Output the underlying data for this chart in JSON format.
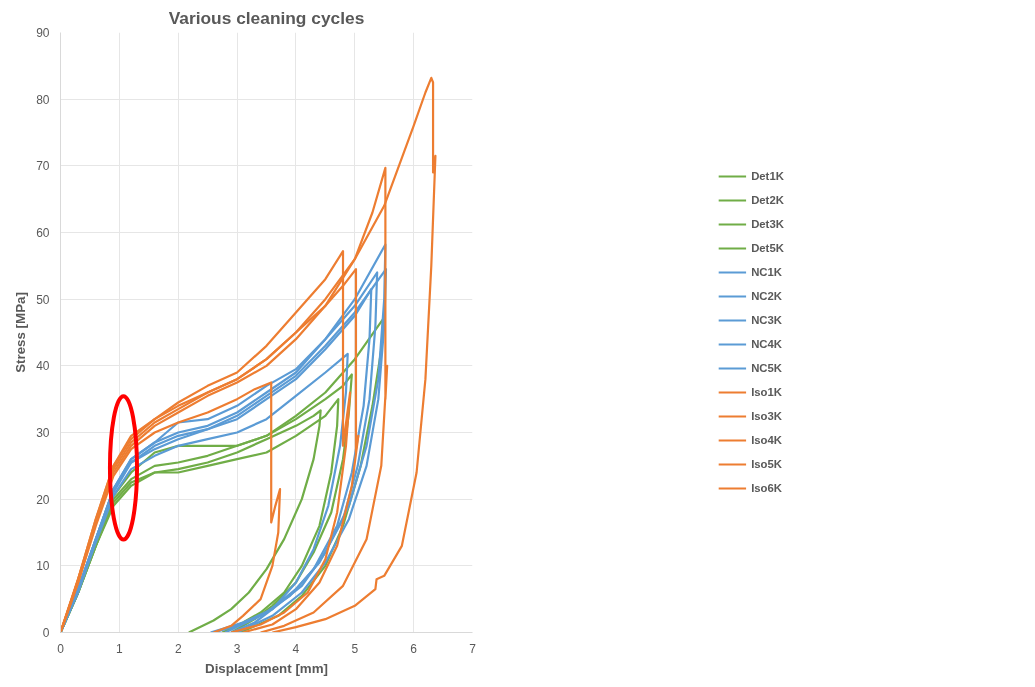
{
  "chart_data": {
    "type": "line",
    "title": "Various cleaning cycles",
    "xlabel": "Displacement [mm]",
    "ylabel": "Stress [MPa]",
    "xlim": [
      0,
      7
    ],
    "xticks": [
      0,
      1,
      2,
      3,
      4,
      5,
      6,
      7
    ],
    "ylim": [
      0,
      90
    ],
    "yticks": [
      0,
      10,
      20,
      30,
      40,
      50,
      60,
      70,
      80,
      90
    ],
    "grid": true,
    "legend": "right",
    "marker": "none",
    "line_style": "solid",
    "series": [
      {
        "name": "Det1K",
        "color": "#70ad47",
        "x": [
          0,
          0.3,
          0.6,
          0.9,
          1.2,
          1.6,
          2.0,
          2.5,
          3.0,
          3.5,
          4.0,
          4.3,
          4.42,
          4.4,
          4.3,
          4.1,
          3.8,
          3.5,
          3.2,
          2.9,
          2.6,
          2.18
        ],
        "values": [
          0,
          6,
          13,
          19,
          22,
          24,
          24.5,
          25.5,
          27,
          29,
          31,
          32.5,
          33.3,
          31,
          26,
          20,
          14,
          9.5,
          6,
          3.5,
          1.8,
          0
        ]
      },
      {
        "name": "Det2K",
        "color": "#70ad47",
        "x": [
          0,
          0.3,
          0.6,
          0.9,
          1.2,
          1.6,
          2.0,
          2.5,
          3.0,
          3.5,
          4.0,
          4.5,
          4.8,
          4.95,
          4.9,
          4.8,
          4.6,
          4.3,
          4.0,
          3.6,
          3.3,
          2.9
        ],
        "values": [
          0,
          6,
          13,
          20,
          23,
          25,
          25.5,
          26.5,
          28,
          29.5,
          32,
          35,
          37,
          38.7,
          33,
          26,
          18,
          12,
          7.5,
          4,
          2,
          0
        ]
      },
      {
        "name": "Det3K",
        "color": "#70ad47",
        "x": [
          0,
          0.3,
          0.6,
          0.9,
          1.2,
          1.6,
          2.0,
          2.5,
          3.0,
          3.5,
          4.0,
          4.5,
          5.0,
          5.48,
          5.46,
          5.3,
          5.1,
          4.8,
          4.5,
          4.1,
          3.7,
          3.05
        ],
        "values": [
          0,
          6,
          13.5,
          20.5,
          24,
          27,
          28,
          28,
          28,
          29.5,
          32.5,
          36,
          41,
          47,
          43,
          34,
          25,
          16,
          10,
          5.5,
          2.5,
          0
        ]
      },
      {
        "name": "Det5K",
        "color": "#70ad47",
        "x": [
          0,
          0.3,
          0.6,
          0.9,
          1.2,
          1.6,
          2.0,
          2.5,
          3.0,
          3.5,
          4.0,
          4.5,
          4.72,
          4.7,
          4.6,
          4.4,
          4.1,
          3.8,
          3.4,
          3.1,
          2.75
        ],
        "values": [
          0,
          6,
          13,
          19.5,
          22.5,
          24,
          24,
          25,
          26,
          27,
          29.5,
          32.5,
          35,
          31,
          24,
          16,
          10,
          6,
          3,
          1.5,
          0
        ]
      },
      {
        "name": "NC1K",
        "color": "#5b9bd5",
        "x": [
          0,
          0.3,
          0.6,
          0.9,
          1.2,
          1.6,
          2.0,
          2.5,
          3.0,
          3.5,
          4.0,
          4.5,
          5.0,
          5.52,
          5.5,
          5.4,
          5.2,
          4.9,
          4.5,
          4.1,
          3.6,
          3.1,
          2.55
        ],
        "values": [
          0,
          6.5,
          14,
          21.5,
          26,
          28.5,
          30,
          31,
          33,
          36,
          39,
          44,
          50,
          58.2,
          50,
          38,
          28,
          19,
          12,
          7,
          3.5,
          1.5,
          0
        ]
      },
      {
        "name": "NC2K",
        "color": "#5b9bd5",
        "x": [
          0,
          0.3,
          0.6,
          0.9,
          1.2,
          1.6,
          2.0,
          2.5,
          3.0,
          3.5,
          4.0,
          4.5,
          5.0,
          5.38,
          5.35,
          5.25,
          5.05,
          4.8,
          4.4,
          4.0,
          3.5,
          3.0,
          2.6
        ],
        "values": [
          0,
          6.5,
          14,
          21.5,
          26,
          28.5,
          31.5,
          32,
          34,
          37,
          39.5,
          44,
          49,
          54,
          46,
          35,
          25,
          17,
          10.5,
          6.5,
          3,
          1,
          0
        ]
      },
      {
        "name": "NC3K",
        "color": "#5b9bd5",
        "x": [
          0,
          0.3,
          0.6,
          0.9,
          1.2,
          1.6,
          2.0,
          2.5,
          3.0,
          3.5,
          4.0,
          4.5,
          5.0,
          5.28,
          5.25,
          5.15,
          4.95,
          4.7,
          4.3,
          3.9,
          3.4,
          2.8
        ],
        "values": [
          0,
          6.5,
          14,
          21,
          25.5,
          28,
          29.5,
          30.5,
          32,
          35,
          38,
          42.5,
          47.5,
          51.5,
          44,
          34,
          24,
          16,
          9.5,
          5.5,
          2.5,
          0
        ]
      },
      {
        "name": "NC4K",
        "color": "#5b9bd5",
        "x": [
          0,
          0.3,
          0.6,
          0.9,
          1.2,
          1.6,
          2.0,
          2.5,
          3.0,
          3.5,
          4.0,
          4.5,
          4.88,
          4.85,
          4.75,
          4.55,
          4.3,
          4.0,
          3.6,
          3.3,
          2.9
        ],
        "values": [
          0,
          6,
          13.5,
          20.5,
          24.5,
          26.5,
          28,
          29,
          30,
          32,
          35.5,
          39,
          41.8,
          36,
          28,
          19,
          12.5,
          7.5,
          3.5,
          1.5,
          0
        ]
      },
      {
        "name": "NC5K",
        "color": "#5b9bd5",
        "x": [
          0,
          0.3,
          0.6,
          0.9,
          1.2,
          1.6,
          2.0,
          2.5,
          3.0,
          3.5,
          4.0,
          4.5,
          5.0,
          5.53,
          5.5,
          5.4,
          5.2,
          4.9,
          4.5,
          4.1,
          3.6,
          3.0
        ],
        "values": [
          0,
          6.5,
          14,
          21.5,
          25.5,
          27.5,
          29,
          30.5,
          32.5,
          35.5,
          38.5,
          43,
          48,
          54.5,
          46,
          35,
          25,
          17,
          10.5,
          6,
          2.5,
          0
        ]
      },
      {
        "name": "Iso1K",
        "color": "#ed7d31",
        "x": [
          0,
          0.3,
          0.6,
          0.9,
          1.2,
          1.6,
          2.0,
          2.5,
          3.0,
          3.3,
          3.58,
          3.58,
          3.65,
          3.73,
          3.7,
          3.6,
          3.4,
          3.1,
          2.9,
          2.6
        ],
        "values": [
          0,
          7.5,
          16,
          23.5,
          27.5,
          30,
          31.5,
          33,
          35,
          36.5,
          37.5,
          16.5,
          19,
          21.5,
          15,
          10,
          5,
          2.5,
          1,
          0
        ]
      },
      {
        "name": "Iso3K",
        "color": "#ed7d31",
        "x": [
          0,
          0.3,
          0.6,
          0.9,
          1.2,
          1.6,
          2.0,
          2.5,
          3.0,
          3.5,
          4.0,
          4.5,
          4.8,
          4.8,
          4.92,
          4.85,
          4.7,
          4.5,
          4.2,
          3.8,
          3.4,
          2.9
        ],
        "values": [
          0,
          8,
          17,
          25,
          29,
          32,
          34.5,
          37,
          39,
          43,
          48,
          53,
          57.2,
          28,
          36,
          28,
          18,
          11,
          6,
          3,
          1.2,
          0
        ]
      },
      {
        "name": "Iso4K",
        "color": "#ed7d31",
        "x": [
          0,
          0.3,
          0.6,
          0.9,
          1.2,
          1.6,
          2.0,
          2.5,
          3.0,
          3.5,
          4.0,
          4.5,
          4.8,
          5.02,
          5.02,
          5.06,
          4.95,
          4.7,
          4.4,
          4.0,
          3.6,
          3.1
        ],
        "values": [
          0,
          8,
          16.5,
          24,
          28,
          31,
          33,
          35.5,
          37.5,
          40,
          44,
          49,
          52,
          54.5,
          27,
          29.5,
          22,
          13,
          7.5,
          3.5,
          1.2,
          0
        ]
      },
      {
        "name": "Iso5K",
        "color": "#ed7d31",
        "x": [
          0,
          0.3,
          0.6,
          0.9,
          1.2,
          1.6,
          2.0,
          2.5,
          3.0,
          3.5,
          4.0,
          4.5,
          5.0,
          5.3,
          5.52,
          5.52,
          5.55,
          5.45,
          5.2,
          4.8,
          4.3,
          3.8,
          3.4
        ],
        "values": [
          0,
          8,
          17,
          25,
          29.5,
          32,
          34,
          36,
          38,
          41,
          45,
          49,
          56,
          63,
          69.7,
          35,
          40,
          25,
          14,
          7,
          3,
          1,
          0
        ]
      },
      {
        "name": "Iso6K",
        "color": "#ed7d31",
        "x": [
          0,
          0.3,
          0.6,
          0.9,
          1.2,
          1.6,
          2.0,
          2.5,
          3.0,
          3.5,
          4.0,
          4.5,
          5.0,
          5.5,
          6.0,
          6.2,
          6.3,
          6.33,
          6.33,
          6.37,
          6.3,
          6.2,
          6.05,
          5.8,
          5.5,
          5.37,
          5.35,
          5.0,
          4.5,
          4.0,
          3.6
        ],
        "values": [
          0,
          7.5,
          16.5,
          24.5,
          28.5,
          31.5,
          33.5,
          36,
          38,
          41,
          45,
          50,
          56,
          64,
          76,
          81,
          83.2,
          82.5,
          69,
          71.5,
          55,
          38,
          24,
          13,
          8.5,
          8,
          6.5,
          4,
          2,
          0.8,
          0
        ]
      }
    ]
  }
}
